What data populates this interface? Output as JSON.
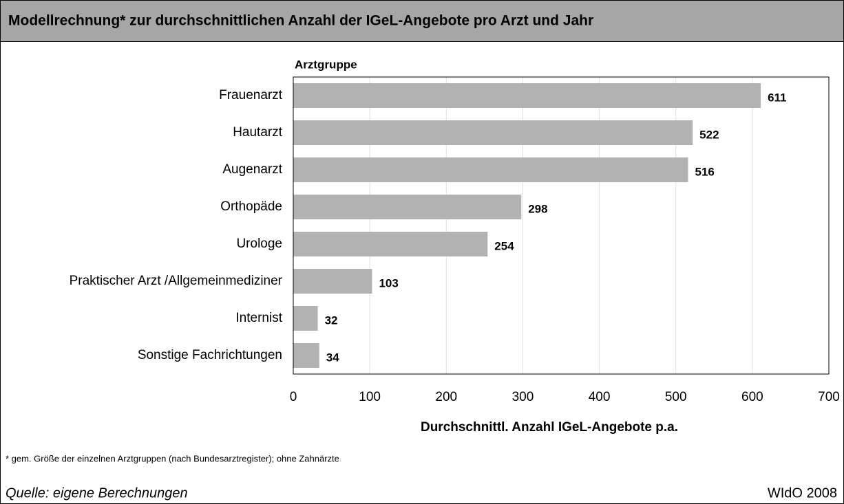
{
  "chart_data": {
    "type": "bar",
    "orientation": "horizontal",
    "title": "Modellrechnung* zur durchschnittlichen Anzahl der IGeL-Angebote pro Arzt und Jahr",
    "y_label": "Arztgruppe",
    "x_label": "Durchschnittl. Anzahl IGeL-Angebote p.a.",
    "categories": [
      "Frauenarzt",
      "Hautarzt",
      "Augenarzt",
      "Orthopäde",
      "Urologe",
      "Praktischer Arzt /Allgemeinmediziner",
      "Internist",
      "Sonstige Fachrichtungen"
    ],
    "values": [
      611,
      522,
      516,
      298,
      254,
      103,
      32,
      34
    ],
    "color": "#b2b2b2",
    "xlim": [
      0,
      700
    ],
    "xticks": [
      0,
      100,
      200,
      300,
      400,
      500,
      600,
      700
    ],
    "grid": true,
    "footnote": "*   gem. Größe der einzelnen Arztgruppen (nach Bundesarztregister); ohne Zahnärzte",
    "source": "Quelle: eigene Berechnungen",
    "credit": "WIdO 2008"
  }
}
